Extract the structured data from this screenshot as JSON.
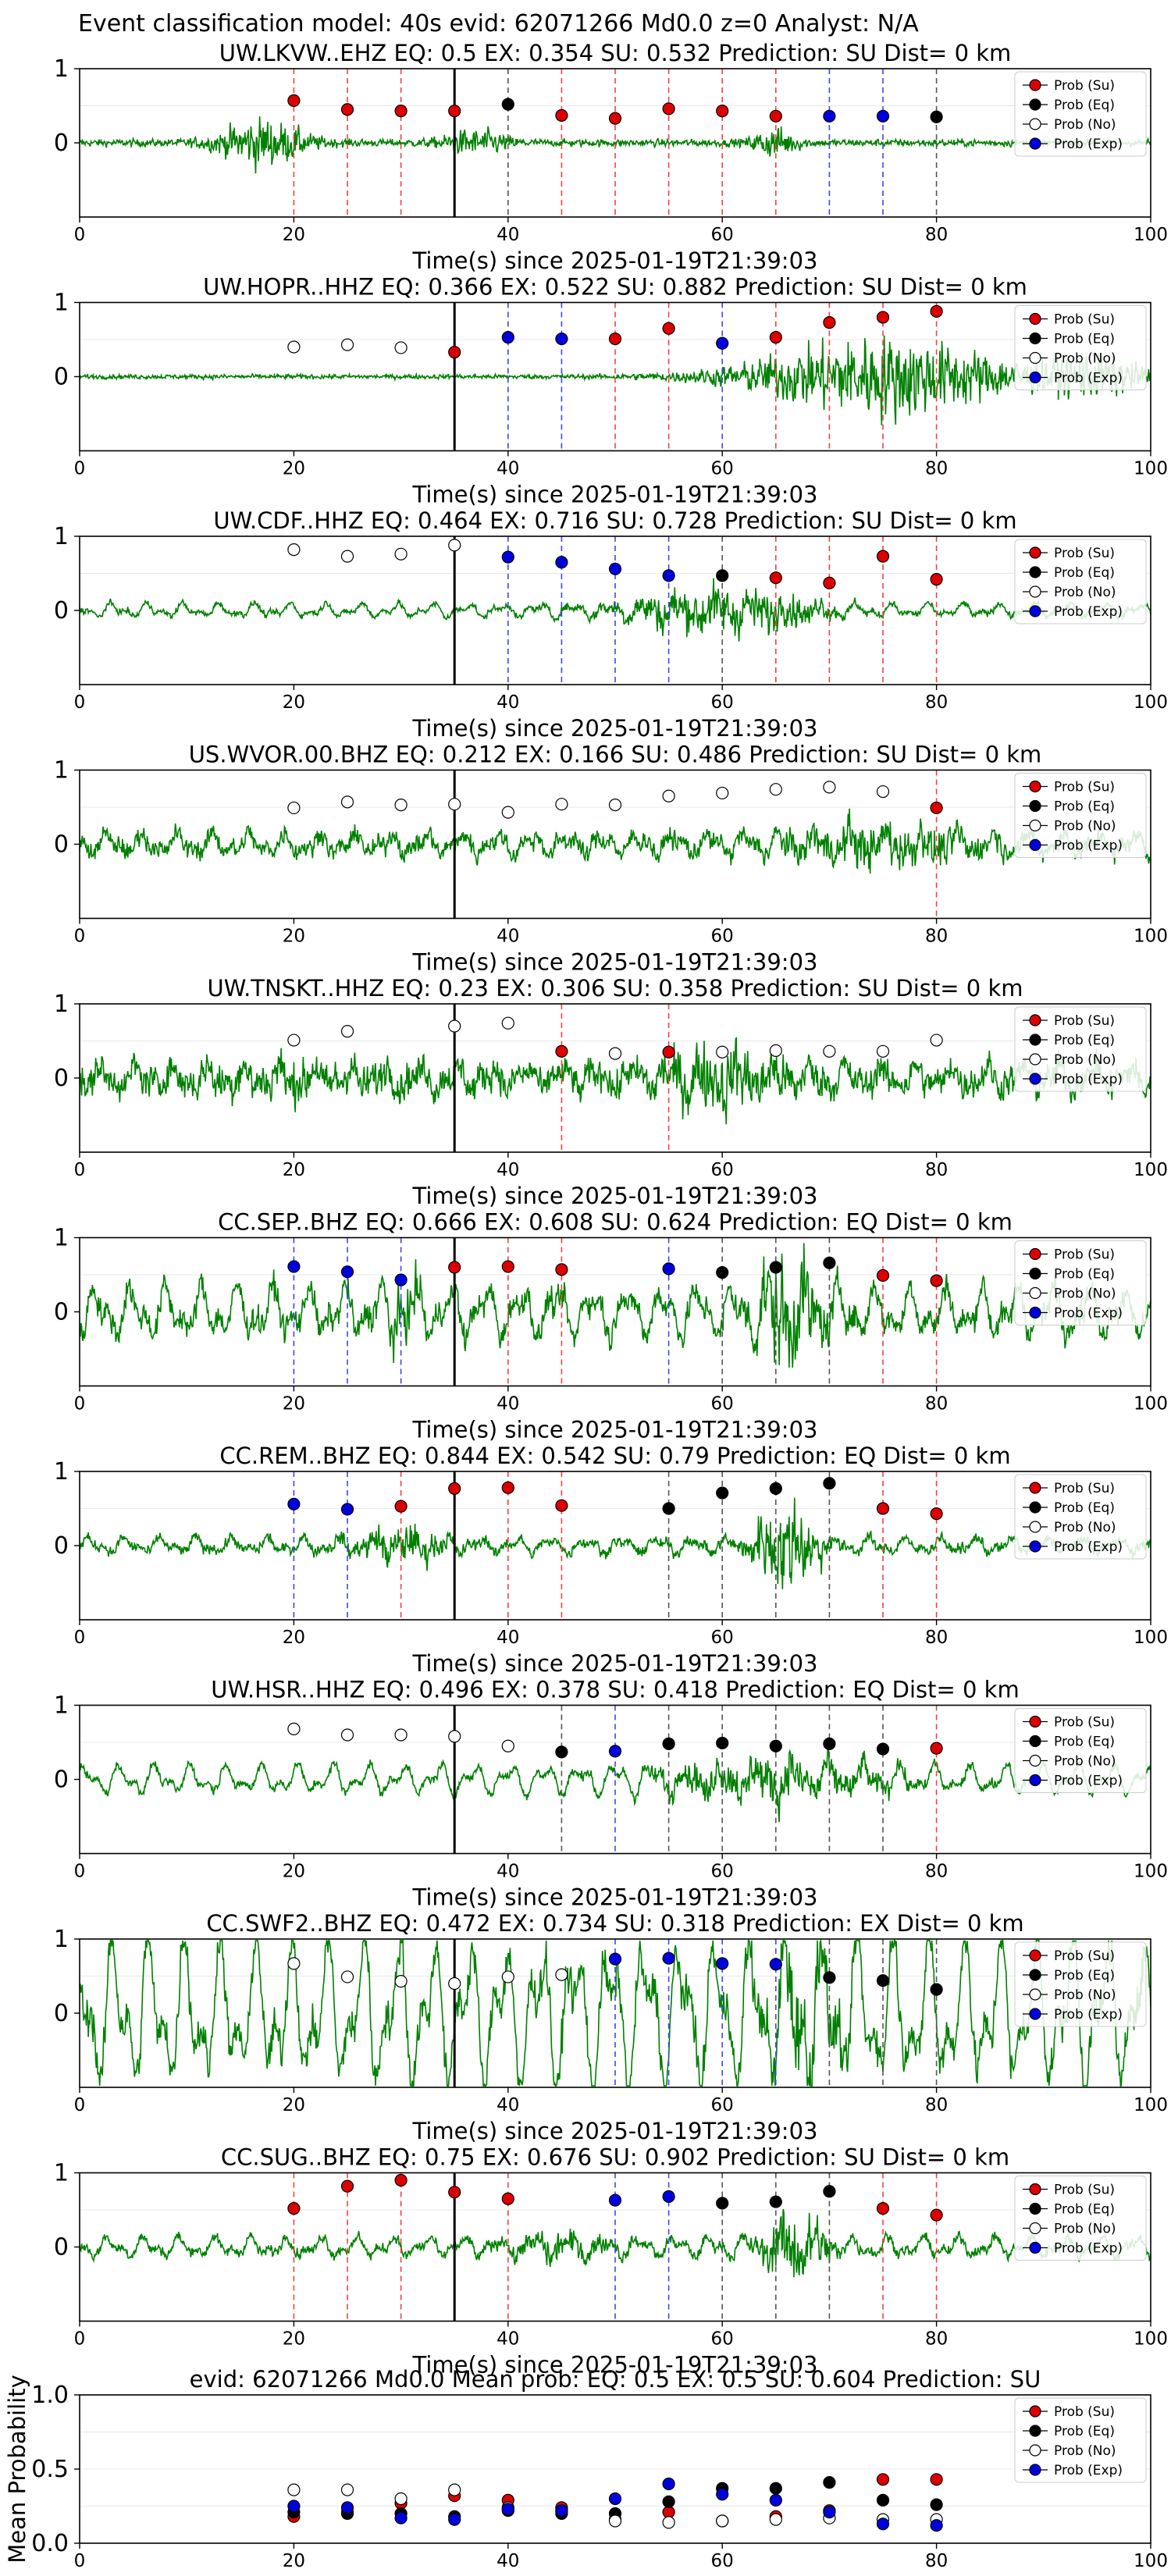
{
  "suptitle": "Event classification model: 40s evid: 62071266 Md0.0 z=0 Analyst: N/A",
  "colors": {
    "waveform": "#008000",
    "su": "#dd0000",
    "eq": "#000000",
    "no": "#ffffff",
    "exp": "#0000dd",
    "su_line": "#ee4444",
    "eq_line": "#555555",
    "exp_line": "#4444ee",
    "onset_line": "#000000"
  },
  "legend": [
    "Prob (Su)",
    "Prob (Eq)",
    "Prob (No)",
    "Prob (Exp)"
  ],
  "chart_data": [
    {
      "type": "scatter",
      "title": "UW.LKVW..EHZ   EQ: 0.5   EX: 0.354   SU: 0.532   Prediction: SU    Dist= 0 km",
      "xlabel": "Time(s) since 2025-01-19T21:39:03",
      "xlim": [
        0,
        100
      ],
      "ylim": [
        -1,
        1
      ],
      "xticks": [
        "0",
        "20",
        "40",
        "60",
        "80",
        "100"
      ],
      "yticks": [
        "0",
        "1"
      ],
      "onset": 35,
      "points": [
        [
          20,
          0.57,
          "su"
        ],
        [
          25,
          0.45,
          "su"
        ],
        [
          30,
          0.43,
          "su"
        ],
        [
          35,
          0.43,
          "su"
        ],
        [
          40,
          0.52,
          "eq"
        ],
        [
          45,
          0.37,
          "su"
        ],
        [
          50,
          0.33,
          "su"
        ],
        [
          55,
          0.46,
          "su"
        ],
        [
          60,
          0.43,
          "su"
        ],
        [
          65,
          0.36,
          "su"
        ],
        [
          70,
          0.36,
          "exp"
        ],
        [
          75,
          0.36,
          "exp"
        ],
        [
          80,
          0.35,
          "eq"
        ]
      ]
    },
    {
      "type": "scatter",
      "title": "UW.HOPR..HHZ   EQ: 0.366   EX: 0.522   SU: 0.882   Prediction: SU    Dist= 0 km",
      "xlabel": "Time(s) since 2025-01-19T21:39:03",
      "xlim": [
        0,
        100
      ],
      "ylim": [
        -1,
        1
      ],
      "xticks": [
        "0",
        "20",
        "40",
        "60",
        "80",
        "100"
      ],
      "yticks": [
        "0",
        "1"
      ],
      "onset": 35,
      "points": [
        [
          20,
          0.4,
          "no"
        ],
        [
          25,
          0.43,
          "no"
        ],
        [
          30,
          0.39,
          "no"
        ],
        [
          35,
          0.33,
          "su"
        ],
        [
          40,
          0.53,
          "exp"
        ],
        [
          45,
          0.51,
          "exp"
        ],
        [
          50,
          0.51,
          "su"
        ],
        [
          55,
          0.65,
          "su"
        ],
        [
          60,
          0.45,
          "exp"
        ],
        [
          65,
          0.53,
          "su"
        ],
        [
          70,
          0.73,
          "su"
        ],
        [
          75,
          0.8,
          "su"
        ],
        [
          80,
          0.88,
          "su"
        ]
      ]
    },
    {
      "type": "scatter",
      "title": "UW.CDF..HHZ   EQ: 0.464   EX: 0.716   SU: 0.728   Prediction: SU    Dist= 0 km",
      "xlabel": "Time(s) since 2025-01-19T21:39:03",
      "xlim": [
        0,
        100
      ],
      "ylim": [
        -1,
        1
      ],
      "xticks": [
        "0",
        "20",
        "40",
        "60",
        "80",
        "100"
      ],
      "yticks": [
        "0",
        "1"
      ],
      "onset": 35,
      "points": [
        [
          20,
          0.82,
          "no"
        ],
        [
          25,
          0.73,
          "no"
        ],
        [
          30,
          0.76,
          "no"
        ],
        [
          35,
          0.88,
          "no"
        ],
        [
          40,
          0.72,
          "exp"
        ],
        [
          45,
          0.65,
          "exp"
        ],
        [
          50,
          0.56,
          "exp"
        ],
        [
          55,
          0.47,
          "exp"
        ],
        [
          60,
          0.47,
          "eq"
        ],
        [
          65,
          0.44,
          "su"
        ],
        [
          70,
          0.37,
          "su"
        ],
        [
          75,
          0.73,
          "su"
        ],
        [
          80,
          0.42,
          "su"
        ]
      ]
    },
    {
      "type": "scatter",
      "title": "US.WVOR.00.BHZ   EQ: 0.212   EX: 0.166   SU: 0.486   Prediction: SU    Dist= 0 km",
      "xlabel": "Time(s) since 2025-01-19T21:39:03",
      "xlim": [
        0,
        100
      ],
      "ylim": [
        -1,
        1
      ],
      "xticks": [
        "0",
        "20",
        "40",
        "60",
        "80",
        "100"
      ],
      "yticks": [
        "0",
        "1"
      ],
      "onset": 35,
      "points": [
        [
          20,
          0.49,
          "no"
        ],
        [
          25,
          0.57,
          "no"
        ],
        [
          30,
          0.53,
          "no"
        ],
        [
          35,
          0.54,
          "no"
        ],
        [
          40,
          0.43,
          "no"
        ],
        [
          45,
          0.54,
          "no"
        ],
        [
          50,
          0.53,
          "no"
        ],
        [
          55,
          0.65,
          "no"
        ],
        [
          60,
          0.69,
          "no"
        ],
        [
          65,
          0.74,
          "no"
        ],
        [
          70,
          0.77,
          "no"
        ],
        [
          75,
          0.71,
          "no"
        ],
        [
          80,
          0.49,
          "su"
        ]
      ]
    },
    {
      "type": "scatter",
      "title": "UW.TNSKT..HHZ   EQ: 0.23   EX: 0.306   SU: 0.358   Prediction: SU    Dist= 0 km",
      "xlabel": "Time(s) since 2025-01-19T21:39:03",
      "xlim": [
        0,
        100
      ],
      "ylim": [
        -1,
        1
      ],
      "xticks": [
        "0",
        "20",
        "40",
        "60",
        "80",
        "100"
      ],
      "yticks": [
        "0",
        "1"
      ],
      "onset": 35,
      "points": [
        [
          20,
          0.51,
          "no"
        ],
        [
          25,
          0.63,
          "no"
        ],
        [
          35,
          0.7,
          "no"
        ],
        [
          40,
          0.74,
          "no"
        ],
        [
          45,
          0.36,
          "su"
        ],
        [
          50,
          0.33,
          "no"
        ],
        [
          55,
          0.35,
          "su"
        ],
        [
          60,
          0.35,
          "no"
        ],
        [
          65,
          0.37,
          "no"
        ],
        [
          70,
          0.36,
          "no"
        ],
        [
          75,
          0.36,
          "no"
        ],
        [
          80,
          0.51,
          "no"
        ]
      ]
    },
    {
      "type": "scatter",
      "title": "CC.SEP..BHZ   EQ: 0.666   EX: 0.608   SU: 0.624   Prediction: EQ    Dist= 0 km",
      "xlabel": "Time(s) since 2025-01-19T21:39:03",
      "xlim": [
        0,
        100
      ],
      "ylim": [
        -1,
        1
      ],
      "xticks": [
        "0",
        "20",
        "40",
        "60",
        "80",
        "100"
      ],
      "yticks": [
        "0",
        "1"
      ],
      "onset": 35,
      "points": [
        [
          20,
          0.61,
          "exp"
        ],
        [
          25,
          0.54,
          "exp"
        ],
        [
          30,
          0.43,
          "exp"
        ],
        [
          35,
          0.6,
          "su"
        ],
        [
          40,
          0.61,
          "su"
        ],
        [
          45,
          0.57,
          "su"
        ],
        [
          55,
          0.58,
          "exp"
        ],
        [
          60,
          0.53,
          "eq"
        ],
        [
          65,
          0.6,
          "eq"
        ],
        [
          70,
          0.66,
          "eq"
        ],
        [
          75,
          0.49,
          "su"
        ],
        [
          80,
          0.42,
          "su"
        ]
      ]
    },
    {
      "type": "scatter",
      "title": "CC.REM..BHZ   EQ: 0.844   EX: 0.542   SU: 0.79   Prediction: EQ    Dist= 0 km",
      "xlabel": "Time(s) since 2025-01-19T21:39:03",
      "xlim": [
        0,
        100
      ],
      "ylim": [
        -1,
        1
      ],
      "xticks": [
        "0",
        "20",
        "40",
        "60",
        "80",
        "100"
      ],
      "yticks": [
        "0",
        "1"
      ],
      "onset": 35,
      "points": [
        [
          20,
          0.56,
          "exp"
        ],
        [
          25,
          0.49,
          "exp"
        ],
        [
          30,
          0.53,
          "su"
        ],
        [
          35,
          0.77,
          "su"
        ],
        [
          40,
          0.78,
          "su"
        ],
        [
          45,
          0.54,
          "su"
        ],
        [
          55,
          0.5,
          "eq"
        ],
        [
          60,
          0.71,
          "eq"
        ],
        [
          65,
          0.77,
          "eq"
        ],
        [
          70,
          0.84,
          "eq"
        ],
        [
          75,
          0.5,
          "su"
        ],
        [
          80,
          0.43,
          "su"
        ]
      ]
    },
    {
      "type": "scatter",
      "title": "UW.HSR..HHZ   EQ: 0.496   EX: 0.378   SU: 0.418   Prediction: EQ    Dist= 0 km",
      "xlabel": "Time(s) since 2025-01-19T21:39:03",
      "xlim": [
        0,
        100
      ],
      "ylim": [
        -1,
        1
      ],
      "xticks": [
        "0",
        "20",
        "40",
        "60",
        "80",
        "100"
      ],
      "yticks": [
        "0",
        "1"
      ],
      "onset": 35,
      "points": [
        [
          20,
          0.68,
          "no"
        ],
        [
          25,
          0.6,
          "no"
        ],
        [
          30,
          0.6,
          "no"
        ],
        [
          35,
          0.58,
          "no"
        ],
        [
          40,
          0.45,
          "no"
        ],
        [
          45,
          0.37,
          "eq"
        ],
        [
          50,
          0.38,
          "exp"
        ],
        [
          55,
          0.48,
          "eq"
        ],
        [
          60,
          0.49,
          "eq"
        ],
        [
          65,
          0.45,
          "eq"
        ],
        [
          70,
          0.48,
          "eq"
        ],
        [
          75,
          0.41,
          "eq"
        ],
        [
          80,
          0.42,
          "su"
        ]
      ]
    },
    {
      "type": "scatter",
      "title": "CC.SWF2..BHZ   EQ: 0.472   EX: 0.734   SU: 0.318   Prediction: EX    Dist= 0 km",
      "xlabel": "Time(s) since 2025-01-19T21:39:03",
      "xlim": [
        0,
        100
      ],
      "ylim": [
        -1,
        1
      ],
      "xticks": [
        "0",
        "20",
        "40",
        "60",
        "80",
        "100"
      ],
      "yticks": [
        "0",
        "1"
      ],
      "onset": 35,
      "points": [
        [
          20,
          0.67,
          "no"
        ],
        [
          25,
          0.49,
          "no"
        ],
        [
          30,
          0.43,
          "no"
        ],
        [
          35,
          0.4,
          "no"
        ],
        [
          40,
          0.49,
          "no"
        ],
        [
          45,
          0.52,
          "no"
        ],
        [
          50,
          0.73,
          "exp"
        ],
        [
          55,
          0.74,
          "exp"
        ],
        [
          60,
          0.67,
          "exp"
        ],
        [
          65,
          0.66,
          "exp"
        ],
        [
          70,
          0.48,
          "eq"
        ],
        [
          75,
          0.44,
          "eq"
        ],
        [
          80,
          0.32,
          "eq"
        ]
      ]
    },
    {
      "type": "scatter",
      "title": "CC.SUG..BHZ   EQ: 0.75   EX: 0.676   SU: 0.902   Prediction: SU    Dist= 0 km",
      "xlabel": "Time(s) since 2025-01-19T21:39:03",
      "xlim": [
        0,
        100
      ],
      "ylim": [
        -1,
        1
      ],
      "xticks": [
        "0",
        "20",
        "40",
        "60",
        "80",
        "100"
      ],
      "yticks": [
        "0",
        "1"
      ],
      "onset": 35,
      "points": [
        [
          20,
          0.52,
          "su"
        ],
        [
          25,
          0.82,
          "su"
        ],
        [
          30,
          0.9,
          "su"
        ],
        [
          35,
          0.74,
          "su"
        ],
        [
          40,
          0.65,
          "su"
        ],
        [
          50,
          0.63,
          "exp"
        ],
        [
          55,
          0.68,
          "exp"
        ],
        [
          60,
          0.59,
          "eq"
        ],
        [
          65,
          0.61,
          "eq"
        ],
        [
          70,
          0.75,
          "eq"
        ],
        [
          75,
          0.52,
          "su"
        ],
        [
          80,
          0.43,
          "su"
        ]
      ]
    },
    {
      "type": "scatter",
      "title": "evid: 62071266  Md0.0   Mean prob:   EQ: 0.5  EX: 0.5  SU: 0.604   Prediction: SU",
      "xlabel": "",
      "ylabel": "Mean Probability",
      "xlim": [
        0,
        100
      ],
      "ylim": [
        0,
        1
      ],
      "xticks": [
        "0",
        "20",
        "40",
        "60",
        "80",
        "100"
      ],
      "yticks": [
        "0.0",
        "0.5",
        "1.0"
      ],
      "series": [
        {
          "name": "Prob (Su)",
          "key": "su",
          "x": [
            20,
            25,
            30,
            35,
            40,
            45,
            50,
            55,
            60,
            65,
            70,
            75,
            80
          ],
          "y": [
            0.18,
            0.21,
            0.27,
            0.32,
            0.29,
            0.24,
            0.16,
            0.21,
            0.15,
            0.18,
            0.22,
            0.43,
            0.43
          ]
        },
        {
          "name": "Prob (Eq)",
          "key": "eq",
          "x": [
            20,
            25,
            30,
            35,
            40,
            45,
            50,
            55,
            60,
            65,
            70,
            75,
            80
          ],
          "y": [
            0.21,
            0.2,
            0.2,
            0.18,
            0.22,
            0.2,
            0.2,
            0.28,
            0.37,
            0.37,
            0.41,
            0.29,
            0.26
          ]
        },
        {
          "name": "Prob (No)",
          "key": "no",
          "x": [
            20,
            25,
            30,
            35,
            40,
            45,
            50,
            55,
            60,
            65,
            70,
            75,
            80
          ],
          "y": [
            0.36,
            0.36,
            0.3,
            0.36,
            0.24,
            0.22,
            0.15,
            0.14,
            0.15,
            0.16,
            0.17,
            0.16,
            0.16
          ]
        },
        {
          "name": "Prob (Exp)",
          "key": "exp",
          "x": [
            20,
            25,
            30,
            35,
            40,
            45,
            50,
            55,
            60,
            65,
            70,
            75,
            80
          ],
          "y": [
            0.25,
            0.24,
            0.17,
            0.16,
            0.23,
            0.22,
            0.3,
            0.4,
            0.33,
            0.29,
            0.21,
            0.13,
            0.12
          ]
        }
      ]
    }
  ]
}
